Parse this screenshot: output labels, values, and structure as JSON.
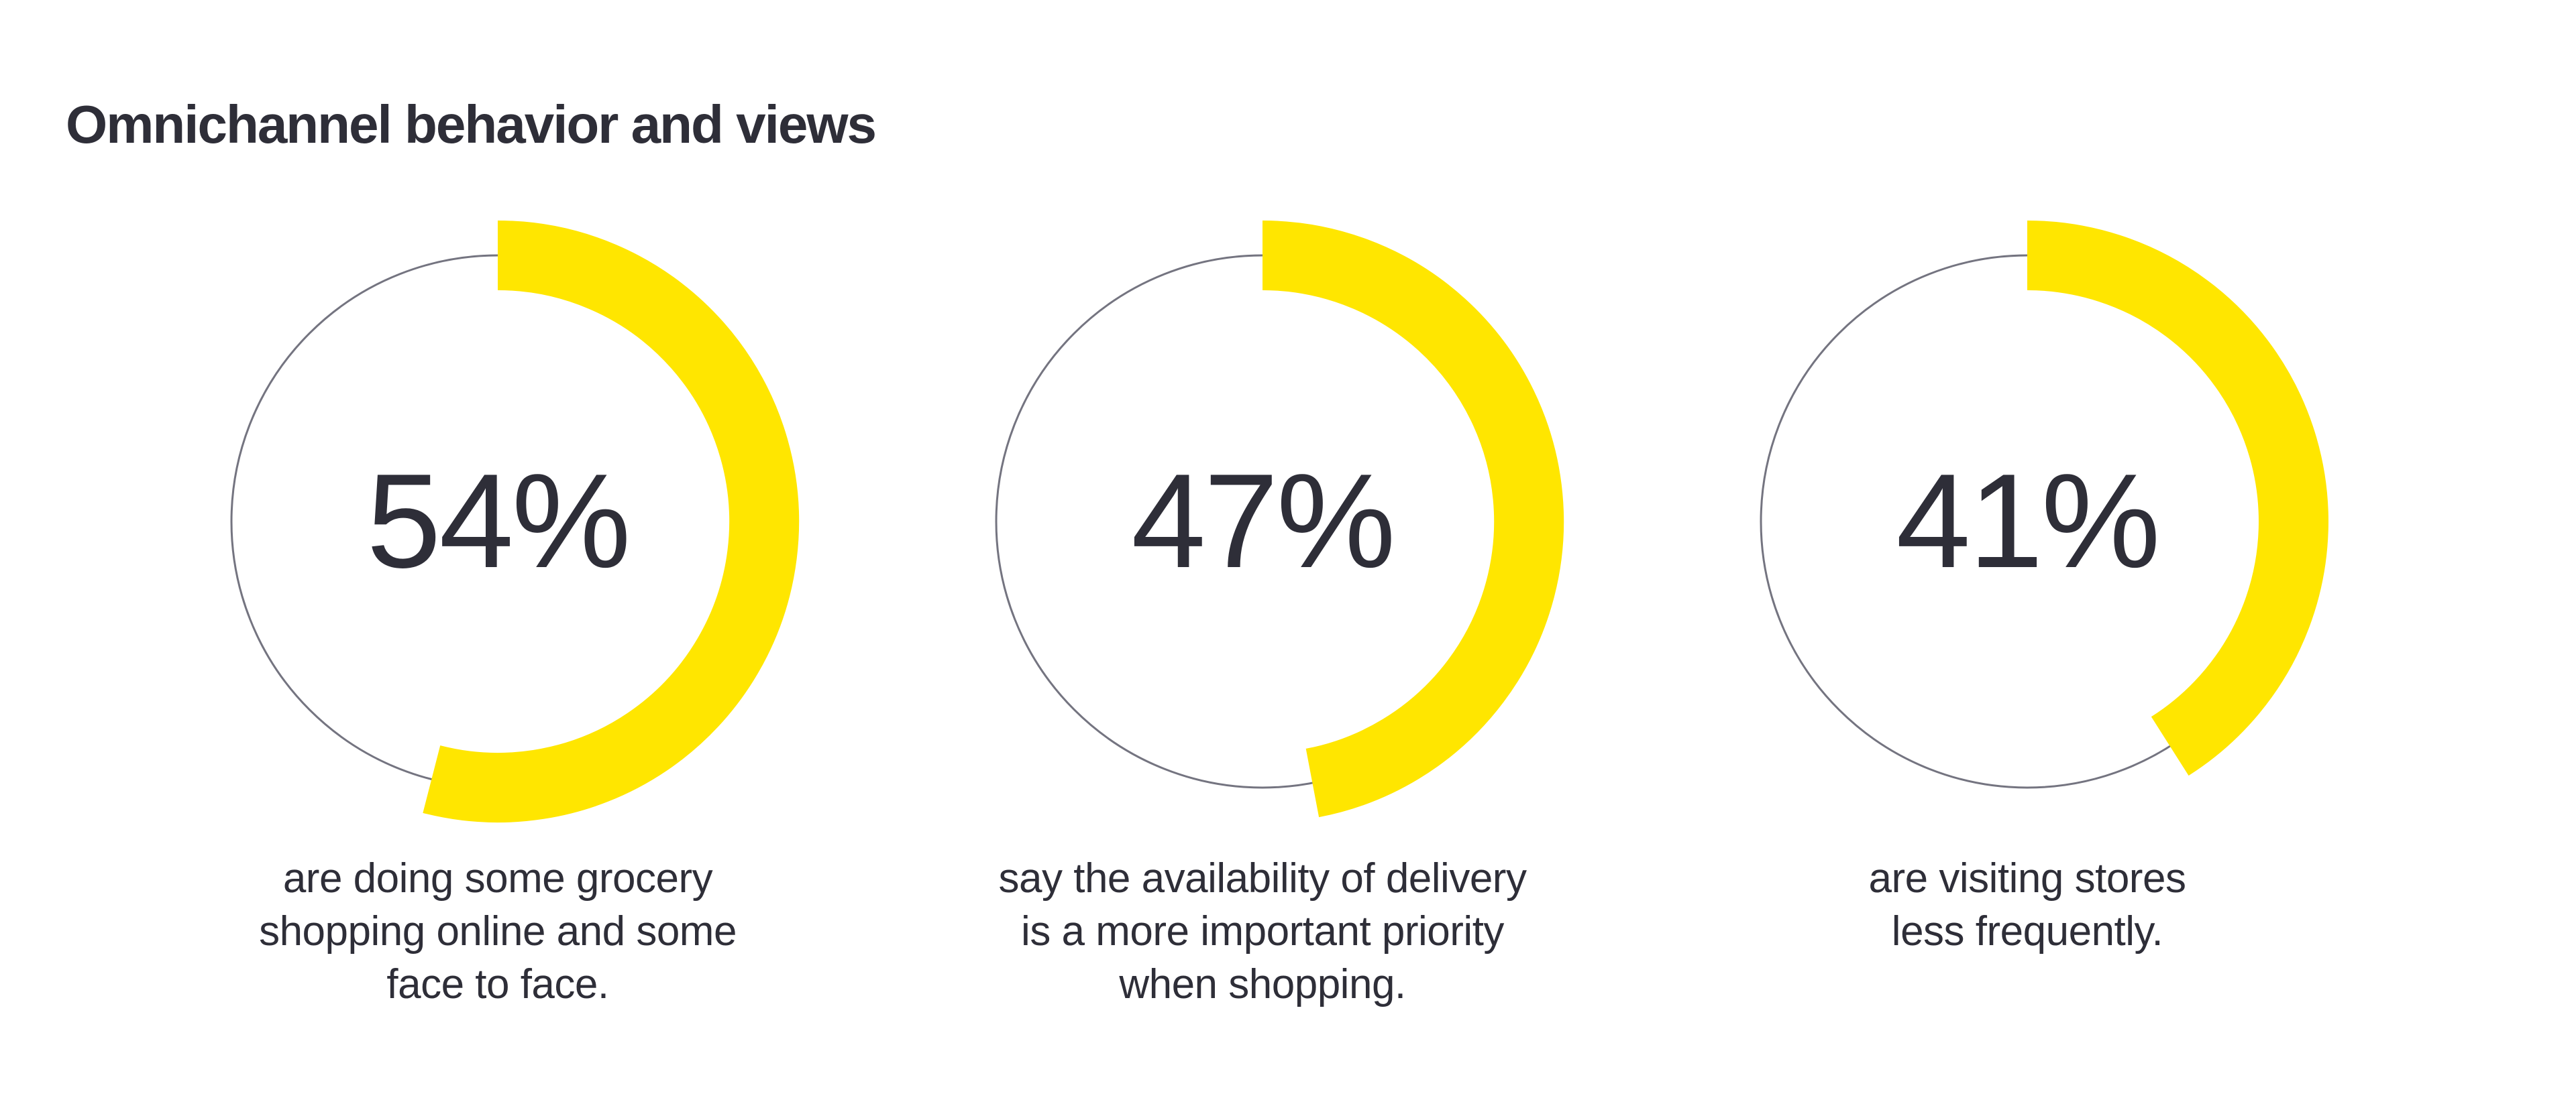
{
  "title": "Omnichannel behavior and views",
  "colors": {
    "background": "#FFFFFF",
    "text_dark": "#2E2E38",
    "accent_yellow": "#FFE600",
    "ring_gray": "#747480"
  },
  "chart_data": {
    "type": "donut",
    "title": "Omnichannel behavior and views",
    "value_unit": "%",
    "arc_start": "top (12 o'clock), sweeping clockwise",
    "legend": "none",
    "items": [
      {
        "value": 54,
        "label": "54%",
        "caption": "are doing some grocery\nshopping online and some\nface to face."
      },
      {
        "value": 47,
        "label": "47%",
        "caption": "say the availability of delivery\nis a more important priority\nwhen shopping."
      },
      {
        "value": 41,
        "label": "41%",
        "caption": "are visiting stores\nless frequently."
      }
    ]
  }
}
